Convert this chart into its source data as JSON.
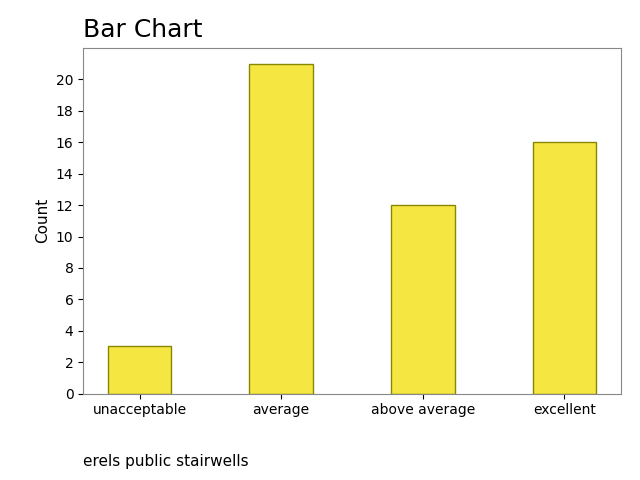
{
  "title": "Bar Chart",
  "categories": [
    "unacceptable",
    "average",
    "above average",
    "excellent"
  ],
  "values": [
    3,
    21,
    12,
    16
  ],
  "bar_color": "#F5E642",
  "bar_edgecolor": "#888800",
  "ylabel": "Count",
  "subtitle": "erels public stairwells",
  "ylim": [
    0,
    22
  ],
  "yticks": [
    0,
    2,
    4,
    6,
    8,
    10,
    12,
    14,
    16,
    18,
    20
  ],
  "title_fontsize": 18,
  "ylabel_fontsize": 11,
  "subtitle_fontsize": 11,
  "tick_fontsize": 10,
  "bar_width": 0.45
}
